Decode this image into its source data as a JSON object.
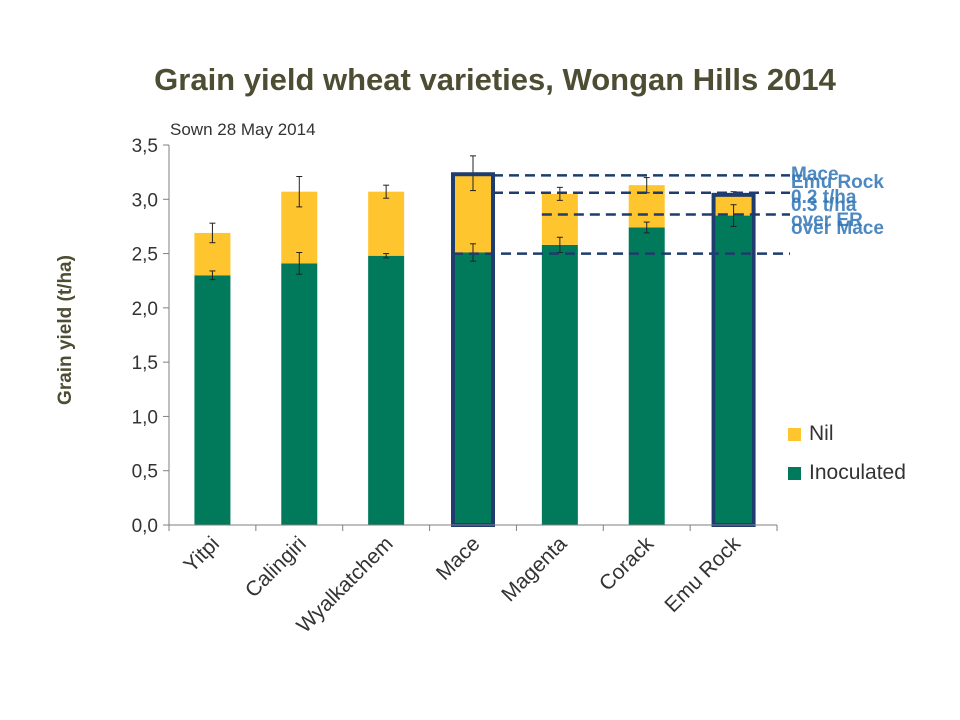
{
  "chart_data": {
    "type": "bar",
    "stacked": true,
    "title": "Grain yield wheat varieties, Wongan Hills 2014",
    "subtitle": "Sown 28 May 2014",
    "ylabel": "Grain yield (t/ha)",
    "xlabel": "",
    "ylim": [
      0,
      3.5
    ],
    "yticks": [
      "0,0",
      "0,5",
      "1,0",
      "1,5",
      "2,0",
      "2,5",
      "3,0",
      "3,5"
    ],
    "categories": [
      "Yitpi",
      "Calingiri",
      "Wyalkatchem",
      "Mace",
      "Magenta",
      "Corack",
      "Emu Rock"
    ],
    "series": [
      {
        "name": "Inoculated",
        "color": "#007a5a",
        "values": [
          2.3,
          2.41,
          2.48,
          2.51,
          2.58,
          2.74,
          2.85
        ],
        "errors": [
          0.04,
          0.1,
          0.02,
          0.08,
          0.07,
          0.05,
          0.1
        ]
      },
      {
        "name": "Nil",
        "color": "#ffc52e",
        "total_values": [
          2.69,
          3.07,
          3.07,
          3.24,
          3.05,
          3.13,
          3.05
        ],
        "errors": [
          0.09,
          0.14,
          0.06,
          0.16,
          0.06,
          0.07,
          0.02
        ]
      }
    ],
    "legend_position": "right",
    "highlighted_categories": [
      "Mace",
      "Emu Rock"
    ],
    "reference_lines": [
      3.22,
      3.06,
      2.86,
      2.5
    ],
    "annotations": [
      {
        "target": "Mace",
        "lines": [
          "Mace",
          "0.2 t/ha",
          "over ER"
        ]
      },
      {
        "target": "Emu Rock",
        "lines": [
          "Emu Rock",
          "0.3 t/ha",
          "over Mace"
        ]
      }
    ]
  }
}
